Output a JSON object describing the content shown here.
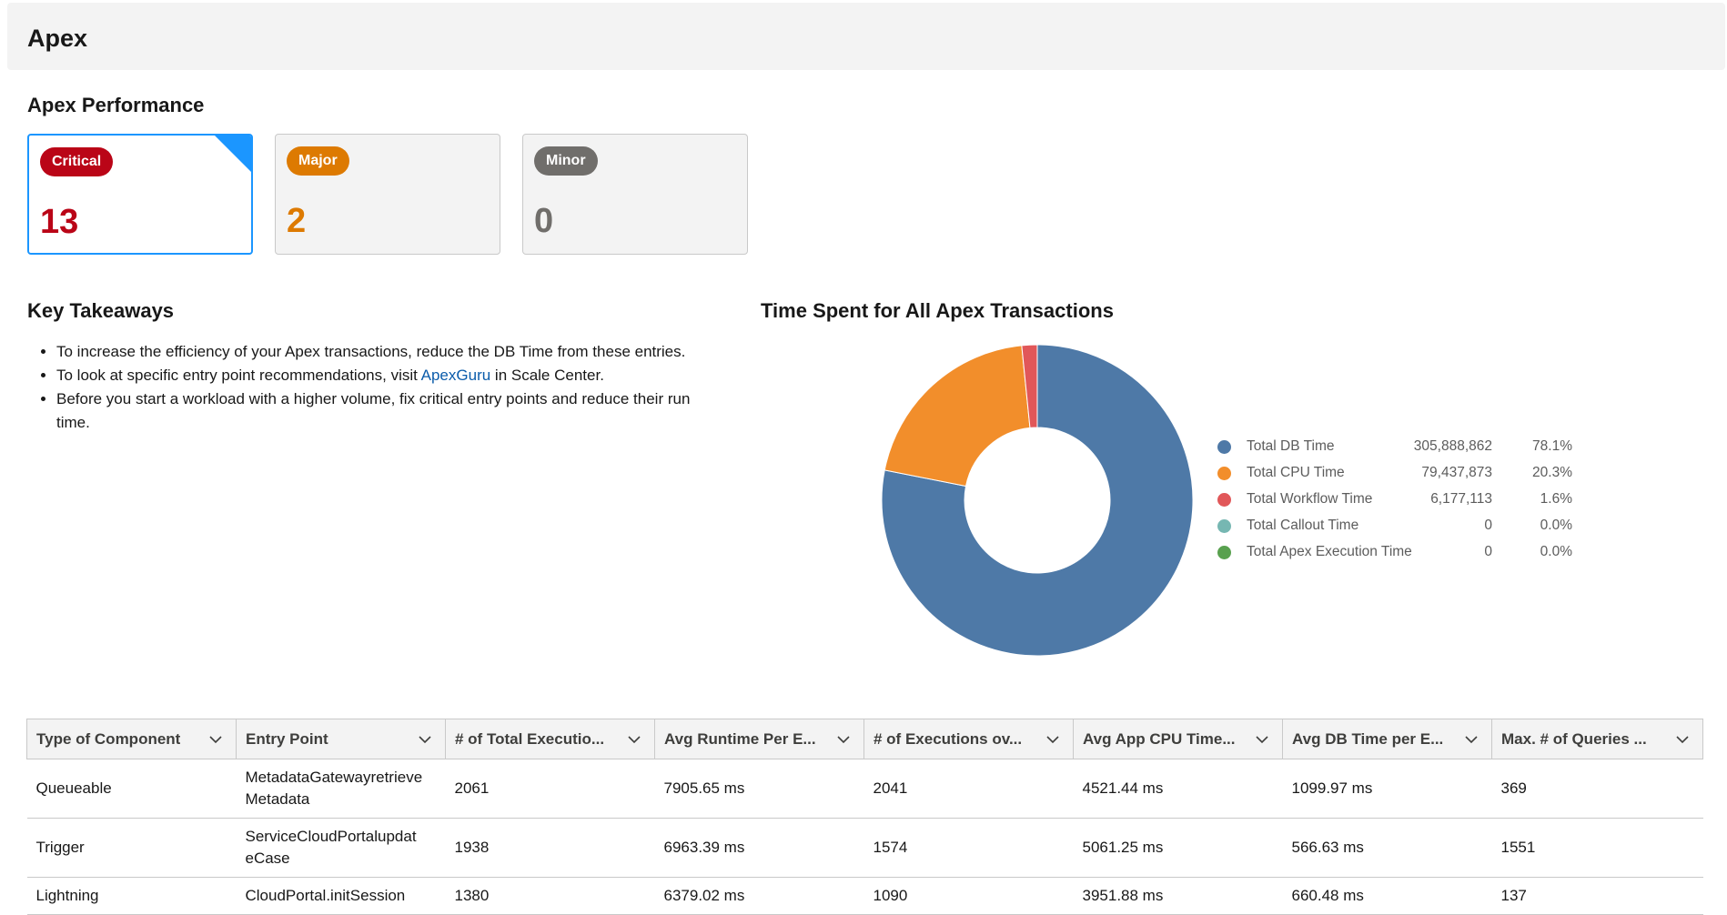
{
  "header": {
    "title": "Apex"
  },
  "performance": {
    "title": "Apex Performance",
    "cards": [
      {
        "label": "Critical",
        "count": "13",
        "color": "#ba0517"
      },
      {
        "label": "Major",
        "count": "2",
        "color": "#dd7a01"
      },
      {
        "label": "Minor",
        "count": "0",
        "color": "#706e6b"
      }
    ]
  },
  "takeaways": {
    "title": "Key Takeaways",
    "item1": "To increase the efficiency of your Apex transactions, reduce the DB Time from these entries.",
    "item2_before": "To look at specific entry point recommendations, visit ",
    "item2_link": "ApexGuru",
    "item2_after": " in Scale Center.",
    "item3": "Before you start a workload with a higher volume, fix critical entry points and reduce their run time."
  },
  "chart": {
    "title": "Time Spent for All Apex Transactions"
  },
  "chart_data": {
    "type": "pie",
    "donut": true,
    "title": "Time Spent for All Apex Transactions",
    "legend_position": "right",
    "slices": [
      {
        "label": "Total DB Time",
        "value": "305,888,862",
        "percent": "78.1%",
        "fraction": 0.781,
        "color": "#4e79a7"
      },
      {
        "label": "Total CPU Time",
        "value": "79,437,873",
        "percent": "20.3%",
        "fraction": 0.203,
        "color": "#f28e2b"
      },
      {
        "label": "Total Workflow Time",
        "value": "6,177,113",
        "percent": "1.6%",
        "fraction": 0.016,
        "color": "#e15759"
      },
      {
        "label": "Total Callout Time",
        "value": "0",
        "percent": "0.0%",
        "fraction": 0,
        "color": "#76b7b2"
      },
      {
        "label": "Total Apex Execution Time",
        "value": "0",
        "percent": "0.0%",
        "fraction": 0,
        "color": "#59a14f"
      }
    ]
  },
  "table": {
    "columns": [
      "Type of Component",
      "Entry Point",
      "# of Total Executio...",
      "Avg Runtime Per E...",
      "# of Executions ov...",
      "Avg App CPU Time...",
      "Avg DB Time per E...",
      "Max. # of Queries ..."
    ],
    "rows": [
      [
        "Queueable",
        "MetadataGatewayretrieve Metadata",
        "2061",
        "7905.65 ms",
        "2041",
        "4521.44 ms",
        "1099.97 ms",
        "369"
      ],
      [
        "Trigger",
        "ServiceCloudPortalupdat eCase",
        "1938",
        "6963.39 ms",
        "1574",
        "5061.25 ms",
        "566.63 ms",
        "1551"
      ],
      [
        "Lightning",
        "CloudPortal.initSession",
        "1380",
        "6379.02 ms",
        "1090",
        "3951.88 ms",
        "660.48 ms",
        "137"
      ]
    ]
  }
}
